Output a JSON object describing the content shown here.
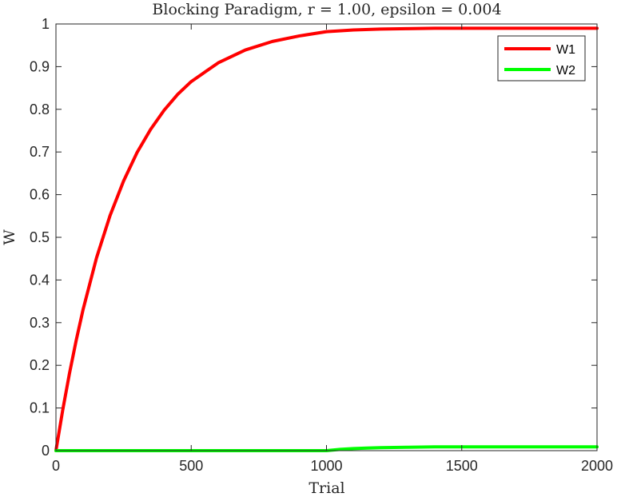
{
  "chart_data": {
    "type": "line",
    "title": "Blocking Paradigm, r = 1.00, epsilon = 0.004",
    "xlabel": "Trial",
    "ylabel": "W",
    "xlim": [
      0,
      2000
    ],
    "ylim": [
      0,
      1
    ],
    "x_ticks": [
      0,
      500,
      1000,
      1500,
      2000
    ],
    "x_tick_labels": [
      "0",
      "500",
      "1000",
      "1500",
      "2000"
    ],
    "y_ticks": [
      0,
      0.1,
      0.2,
      0.3,
      0.4,
      0.5,
      0.6,
      0.7,
      0.8,
      0.9,
      1
    ],
    "y_tick_labels": [
      "0",
      "0.1",
      "0.2",
      "0.3",
      "0.4",
      "0.5",
      "0.6",
      "0.7",
      "0.8",
      "0.9",
      "1"
    ],
    "grid": false,
    "legend_position": "top-right",
    "series": [
      {
        "name": "W1",
        "color": "#ff0000",
        "x": [
          0,
          25,
          50,
          75,
          100,
          150,
          200,
          250,
          300,
          350,
          400,
          450,
          500,
          600,
          700,
          800,
          900,
          1000,
          1100,
          1200,
          1300,
          1400,
          1500,
          1600,
          1700,
          1800,
          1900,
          2000
        ],
        "y": [
          0,
          0.095,
          0.181,
          0.259,
          0.33,
          0.452,
          0.551,
          0.632,
          0.699,
          0.753,
          0.798,
          0.835,
          0.865,
          0.909,
          0.939,
          0.959,
          0.972,
          0.982,
          0.986,
          0.988,
          0.989,
          0.99,
          0.99,
          0.99,
          0.99,
          0.99,
          0.99,
          0.99
        ]
      },
      {
        "name": "W2",
        "color": "#00ff00",
        "x": [
          0,
          250,
          500,
          750,
          1000,
          1050,
          1100,
          1150,
          1200,
          1300,
          1400,
          1500,
          1600,
          1700,
          1800,
          1900,
          2000
        ],
        "y": [
          0,
          0,
          0,
          0,
          0,
          0.003,
          0.005,
          0.006,
          0.007,
          0.008,
          0.009,
          0.009,
          0.009,
          0.009,
          0.009,
          0.009,
          0.009
        ]
      }
    ]
  }
}
